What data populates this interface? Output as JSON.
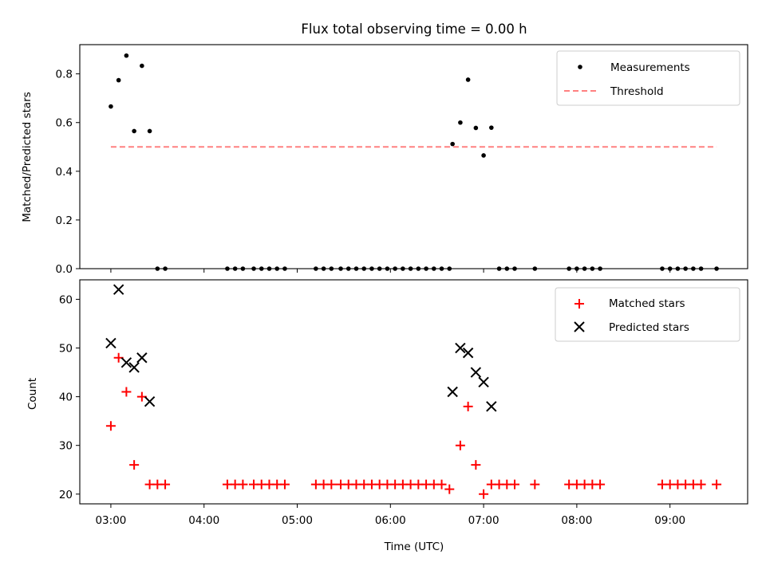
{
  "chart_data": [
    {
      "type": "scatter",
      "title": "Flux total observing time = 0.00 h",
      "xlabel": "",
      "ylabel": "Matched/Predicted stars",
      "xlim": [
        "02:40",
        "09:50"
      ],
      "ylim": [
        0,
        0.92
      ],
      "yticks": [
        "0.0",
        "0.2",
        "0.4",
        "0.6",
        "0.8"
      ],
      "legend_position": "top-right",
      "series": [
        {
          "name": "Measurements",
          "marker": "dot",
          "color": "#000000",
          "points": [
            [
              "03:00",
              0.666
            ],
            [
              "03:05",
              0.774
            ],
            [
              "03:10",
              0.875
            ],
            [
              "03:15",
              0.565
            ],
            [
              "03:20",
              0.833
            ],
            [
              "03:25",
              0.565
            ],
            [
              "03:30",
              0.0
            ],
            [
              "03:35",
              0.0
            ],
            [
              "04:15",
              0.0
            ],
            [
              "04:20",
              0.0
            ],
            [
              "04:25",
              0.0
            ],
            [
              "04:32",
              0.0
            ],
            [
              "04:37",
              0.0
            ],
            [
              "04:42",
              0.0
            ],
            [
              "04:47",
              0.0
            ],
            [
              "04:52",
              0.0
            ],
            [
              "05:12",
              0.0
            ],
            [
              "05:17",
              0.0
            ],
            [
              "05:22",
              0.0
            ],
            [
              "05:28",
              0.0
            ],
            [
              "05:33",
              0.0
            ],
            [
              "05:38",
              0.0
            ],
            [
              "05:43",
              0.0
            ],
            [
              "05:48",
              0.0
            ],
            [
              "05:53",
              0.0
            ],
            [
              "05:58",
              0.0
            ],
            [
              "06:03",
              0.0
            ],
            [
              "06:08",
              0.0
            ],
            [
              "06:13",
              0.0
            ],
            [
              "06:18",
              0.0
            ],
            [
              "06:23",
              0.0
            ],
            [
              "06:28",
              0.0
            ],
            [
              "06:33",
              0.0
            ],
            [
              "06:38",
              0.0
            ],
            [
              "06:40",
              0.512
            ],
            [
              "06:45",
              0.6
            ],
            [
              "06:50",
              0.776
            ],
            [
              "06:55",
              0.578
            ],
            [
              "07:00",
              0.465
            ],
            [
              "07:05",
              0.579
            ],
            [
              "07:10",
              0.0
            ],
            [
              "07:15",
              0.0
            ],
            [
              "07:20",
              0.0
            ],
            [
              "07:33",
              0.0
            ],
            [
              "07:55",
              0.0
            ],
            [
              "08:00",
              0.0
            ],
            [
              "08:05",
              0.0
            ],
            [
              "08:10",
              0.0
            ],
            [
              "08:15",
              0.0
            ],
            [
              "08:55",
              0.0
            ],
            [
              "09:00",
              0.0
            ],
            [
              "09:05",
              0.0
            ],
            [
              "09:10",
              0.0
            ],
            [
              "09:15",
              0.0
            ],
            [
              "09:20",
              0.0
            ],
            [
              "09:30",
              0.0
            ]
          ]
        },
        {
          "name": "Threshold",
          "marker": "dashed-line",
          "color": "#ff8080",
          "points": [
            [
              "03:00",
              0.5
            ],
            [
              "09:30",
              0.5
            ]
          ]
        }
      ]
    },
    {
      "type": "scatter",
      "title": "",
      "xlabel": "Time (UTC)",
      "ylabel": "Count",
      "xlim": [
        "02:40",
        "09:50"
      ],
      "ylim": [
        18,
        64
      ],
      "xticks": [
        "03:00",
        "04:00",
        "05:00",
        "06:00",
        "07:00",
        "08:00",
        "09:00"
      ],
      "yticks": [
        "20",
        "30",
        "40",
        "50",
        "60"
      ],
      "legend_position": "top-right",
      "series": [
        {
          "name": "Matched stars",
          "marker": "plus",
          "color": "#ff0000",
          "points": [
            [
              "03:00",
              34
            ],
            [
              "03:05",
              48
            ],
            [
              "03:10",
              41
            ],
            [
              "03:15",
              26
            ],
            [
              "03:20",
              40
            ],
            [
              "03:25",
              22
            ],
            [
              "03:30",
              22
            ],
            [
              "03:35",
              22
            ],
            [
              "04:15",
              22
            ],
            [
              "04:20",
              22
            ],
            [
              "04:25",
              22
            ],
            [
              "04:32",
              22
            ],
            [
              "04:37",
              22
            ],
            [
              "04:42",
              22
            ],
            [
              "04:47",
              22
            ],
            [
              "04:52",
              22
            ],
            [
              "05:12",
              22
            ],
            [
              "05:17",
              22
            ],
            [
              "05:22",
              22
            ],
            [
              "05:28",
              22
            ],
            [
              "05:33",
              22
            ],
            [
              "05:38",
              22
            ],
            [
              "05:43",
              22
            ],
            [
              "05:48",
              22
            ],
            [
              "05:53",
              22
            ],
            [
              "05:58",
              22
            ],
            [
              "06:03",
              22
            ],
            [
              "06:08",
              22
            ],
            [
              "06:13",
              22
            ],
            [
              "06:18",
              22
            ],
            [
              "06:23",
              22
            ],
            [
              "06:28",
              22
            ],
            [
              "06:33",
              22
            ],
            [
              "06:38",
              21
            ],
            [
              "06:45",
              30
            ],
            [
              "06:50",
              38
            ],
            [
              "06:55",
              26
            ],
            [
              "07:00",
              20
            ],
            [
              "07:05",
              22
            ],
            [
              "07:10",
              22
            ],
            [
              "07:15",
              22
            ],
            [
              "07:20",
              22
            ],
            [
              "07:33",
              22
            ],
            [
              "07:55",
              22
            ],
            [
              "08:00",
              22
            ],
            [
              "08:05",
              22
            ],
            [
              "08:10",
              22
            ],
            [
              "08:15",
              22
            ],
            [
              "08:55",
              22
            ],
            [
              "09:00",
              22
            ],
            [
              "09:05",
              22
            ],
            [
              "09:10",
              22
            ],
            [
              "09:15",
              22
            ],
            [
              "09:20",
              22
            ],
            [
              "09:30",
              22
            ]
          ]
        },
        {
          "name": "Predicted stars",
          "marker": "x",
          "color": "#000000",
          "points": [
            [
              "03:00",
              51
            ],
            [
              "03:05",
              62
            ],
            [
              "03:10",
              47
            ],
            [
              "03:15",
              46
            ],
            [
              "03:20",
              48
            ],
            [
              "03:25",
              39
            ],
            [
              "06:40",
              41
            ],
            [
              "06:45",
              50
            ],
            [
              "06:50",
              49
            ],
            [
              "06:55",
              45
            ],
            [
              "07:00",
              43
            ],
            [
              "07:05",
              38
            ]
          ]
        }
      ]
    }
  ]
}
